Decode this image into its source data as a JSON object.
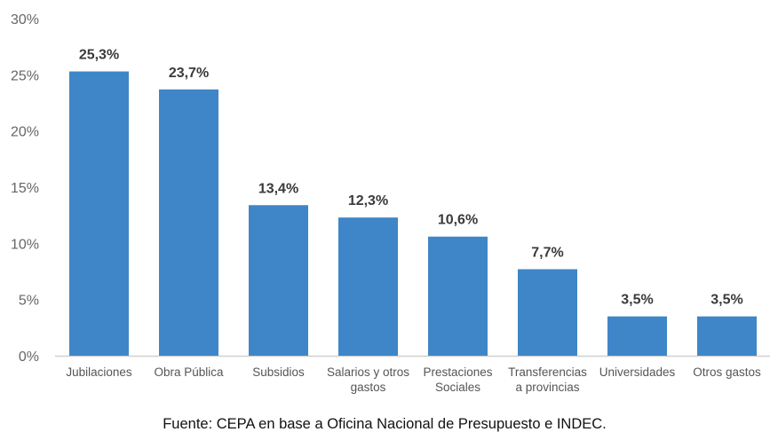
{
  "chart_data": {
    "type": "bar",
    "categories": [
      [
        "Jubilaciones"
      ],
      [
        "Obra Pública"
      ],
      [
        "Subsidios"
      ],
      [
        "Salarios y otros",
        "gastos"
      ],
      [
        "Prestaciones",
        "Sociales"
      ],
      [
        "Transferencias",
        "a provincias"
      ],
      [
        "Universidades"
      ],
      [
        "Otros gastos"
      ]
    ],
    "values": [
      25.3,
      23.7,
      13.4,
      12.3,
      10.6,
      7.7,
      3.5,
      3.5
    ],
    "data_labels": [
      "25,3%",
      "23,7%",
      "13,4%",
      "12,3%",
      "10,6%",
      "7,7%",
      "3,5%",
      "3,5%"
    ],
    "yticks": [
      "0%",
      "5%",
      "10%",
      "15%",
      "20%",
      "25%",
      "30%"
    ],
    "ylim": [
      0,
      30
    ],
    "grid": false,
    "bar_color": "#3f86c8",
    "source": "Fuente: CEPA en base a Oficina Nacional de Presupuesto e INDEC."
  }
}
